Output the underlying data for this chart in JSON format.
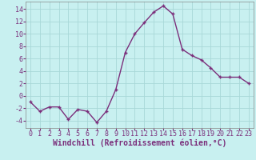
{
  "x": [
    0,
    1,
    2,
    3,
    4,
    5,
    6,
    7,
    8,
    9,
    10,
    11,
    12,
    13,
    14,
    15,
    16,
    17,
    18,
    19,
    20,
    21,
    22,
    23
  ],
  "y": [
    -1,
    -2.5,
    -1.8,
    -1.8,
    -3.8,
    -2.2,
    -2.5,
    -4.3,
    -2.5,
    1.0,
    7.0,
    10.0,
    11.8,
    13.5,
    14.5,
    13.2,
    7.5,
    6.5,
    5.8,
    4.5,
    3.0,
    3.0,
    3.0,
    2.0
  ],
  "line_color": "#7b2f7b",
  "marker": "+",
  "markersize": 3.5,
  "linewidth": 1.0,
  "bg_color": "#c8f0f0",
  "grid_color": "#a8d8d8",
  "ylabel_values": [
    -4,
    -2,
    0,
    2,
    4,
    6,
    8,
    10,
    12,
    14
  ],
  "xlabel": "Windchill (Refroidissement éolien,°C)",
  "xlim": [
    -0.5,
    23.5
  ],
  "ylim": [
    -5.2,
    15.2
  ],
  "xlabel_fontsize": 7,
  "tick_fontsize": 6,
  "title_fontsize": 8
}
